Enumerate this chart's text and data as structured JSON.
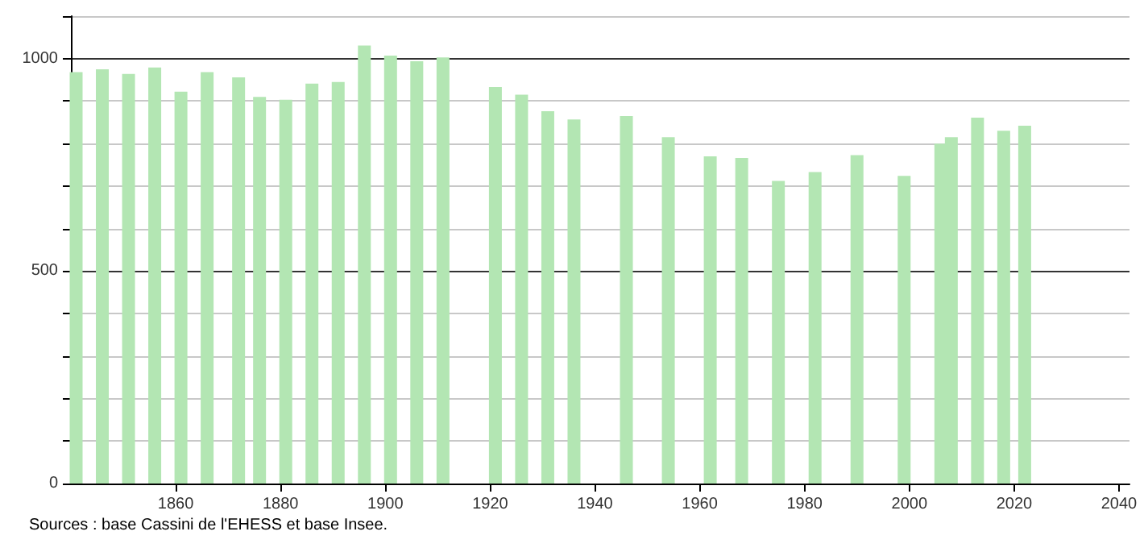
{
  "chart_data": {
    "type": "bar",
    "x": [
      1841,
      1846,
      1851,
      1856,
      1861,
      1866,
      1872,
      1876,
      1881,
      1886,
      1891,
      1896,
      1901,
      1906,
      1911,
      1921,
      1926,
      1931,
      1936,
      1946,
      1954,
      1962,
      1968,
      1975,
      1982,
      1990,
      1999,
      2006,
      2008,
      2013,
      2018,
      2022
    ],
    "values": [
      968,
      975,
      964,
      979,
      922,
      968,
      956,
      910,
      903,
      941,
      945,
      1031,
      1007,
      994,
      1003,
      933,
      915,
      876,
      857,
      865,
      815,
      770,
      766,
      712,
      733,
      773,
      724,
      800,
      815,
      861,
      830,
      842
    ],
    "color": "#b3e6b3",
    "xlim": [
      1840,
      2042
    ],
    "xticks": [
      1860,
      1880,
      1900,
      1920,
      1940,
      1960,
      1980,
      2000,
      2020,
      2040
    ],
    "ylim": [
      0,
      1100
    ],
    "yticks": [
      0,
      {
        "value": 100,
        "label": null
      },
      {
        "value": 200,
        "label": null
      },
      {
        "value": 300,
        "label": null
      },
      {
        "value": 400,
        "label": null
      },
      500,
      {
        "value": 600,
        "label": null
      },
      {
        "value": 700,
        "label": null
      },
      {
        "value": 800,
        "label": null
      },
      {
        "value": 900,
        "label": null
      },
      1000,
      {
        "value": 1100,
        "label": null
      }
    ],
    "grid": "y",
    "annotations": [
      "Sources : base Cassini de l'EHESS et base Insee."
    ]
  }
}
